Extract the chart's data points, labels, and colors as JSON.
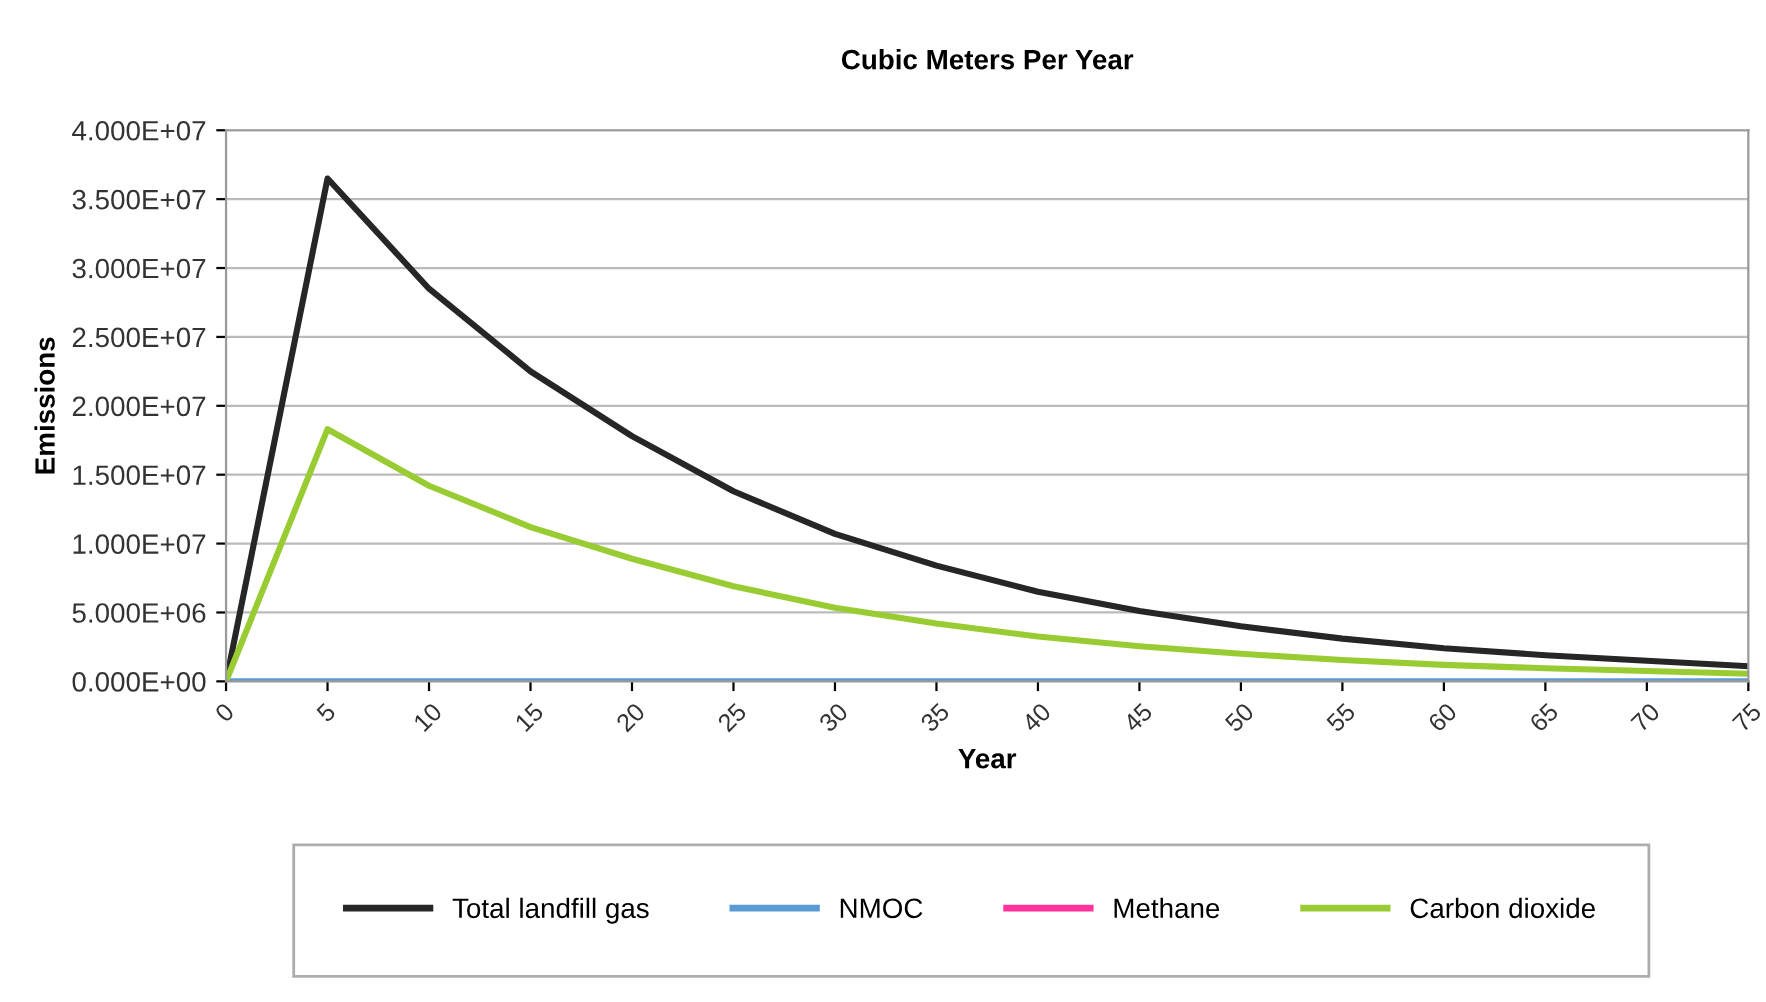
{
  "chart_data": {
    "type": "line",
    "title": "Cubic Meters Per Year",
    "xlabel": "Year",
    "ylabel": "Emissions",
    "x": [
      0,
      5,
      10,
      15,
      20,
      25,
      30,
      35,
      40,
      45,
      50,
      55,
      60,
      65,
      70,
      75
    ],
    "series": [
      {
        "name": "Total landfill gas",
        "color": "#262626",
        "values": [
          0,
          36500000,
          28500000,
          22500000,
          17800000,
          13800000,
          10700000,
          8400000,
          6500000,
          5100000,
          4000000,
          3100000,
          2400000,
          1900000,
          1500000,
          1100000
        ]
      },
      {
        "name": "NMOC",
        "color": "#5b9bd5",
        "values": [
          0,
          0,
          0,
          0,
          0,
          0,
          0,
          0,
          0,
          0,
          0,
          0,
          0,
          0,
          0,
          0
        ]
      },
      {
        "name": "Methane",
        "color": "#ff3399",
        "values": [
          null,
          null,
          null,
          null,
          null,
          null,
          null,
          null,
          null,
          null,
          null,
          null,
          null,
          null,
          null,
          null
        ]
      },
      {
        "name": "Carbon dioxide",
        "color": "#99cc33",
        "values": [
          0,
          18300000,
          14200000,
          11200000,
          8900000,
          6900000,
          5350000,
          4200000,
          3250000,
          2550000,
          2000000,
          1550000,
          1200000,
          950000,
          750000,
          550000
        ]
      }
    ],
    "xlim": [
      0,
      75
    ],
    "xticks": [
      0,
      5,
      10,
      15,
      20,
      25,
      30,
      35,
      40,
      45,
      50,
      55,
      60,
      65,
      70,
      75
    ],
    "ylim": [
      0,
      40000000
    ],
    "yticks": [
      {
        "value": 0,
        "label": "0.000E+00"
      },
      {
        "value": 5000000,
        "label": "5.000E+06"
      },
      {
        "value": 10000000,
        "label": "1.000E+07"
      },
      {
        "value": 15000000,
        "label": "1.500E+07"
      },
      {
        "value": 20000000,
        "label": "2.000E+07"
      },
      {
        "value": 25000000,
        "label": "2.500E+07"
      },
      {
        "value": 30000000,
        "label": "3.000E+07"
      },
      {
        "value": 35000000,
        "label": "3.500E+07"
      },
      {
        "value": 40000000,
        "label": "4.000E+07"
      }
    ],
    "grid": "y",
    "legend": "bottom",
    "marker": "none",
    "line_style": "solid"
  }
}
